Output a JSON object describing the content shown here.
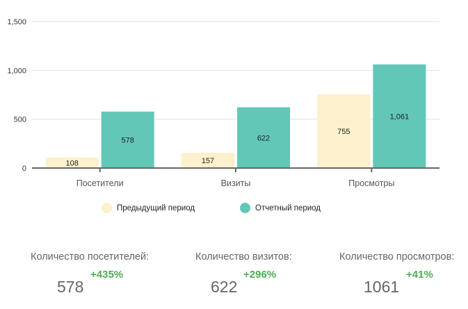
{
  "chart_data": {
    "type": "bar",
    "categories": [
      "Посетители",
      "Визиты",
      "Просмотры"
    ],
    "series": [
      {
        "name": "Предыдущий период",
        "values": [
          108,
          157,
          755
        ],
        "labels": [
          "108",
          "157",
          "755"
        ],
        "color": "#fdf0cc"
      },
      {
        "name": "Отчетный период",
        "values": [
          578,
          622,
          1061
        ],
        "labels": [
          "578",
          "622",
          "1,061"
        ],
        "color": "#63c7b8"
      }
    ],
    "ylim": [
      0,
      1500
    ],
    "yticks": [
      0,
      500,
      1000,
      1500
    ],
    "ytick_labels": [
      "0",
      "500",
      "1,000",
      "1,500"
    ],
    "grid": true,
    "legend_position": "bottom"
  },
  "stats": [
    {
      "label": "Количество посетителей:",
      "value": "578",
      "change": "+435%"
    },
    {
      "label": "Количество визитов:",
      "value": "622",
      "change": "+296%"
    },
    {
      "label": "Количество просмотров:",
      "value": "1061",
      "change": "+41%"
    }
  ],
  "colors": {
    "previous": "#fdf0cc",
    "current": "#63c7b8",
    "positive_change": "#4caf50",
    "axis": "#666666"
  }
}
